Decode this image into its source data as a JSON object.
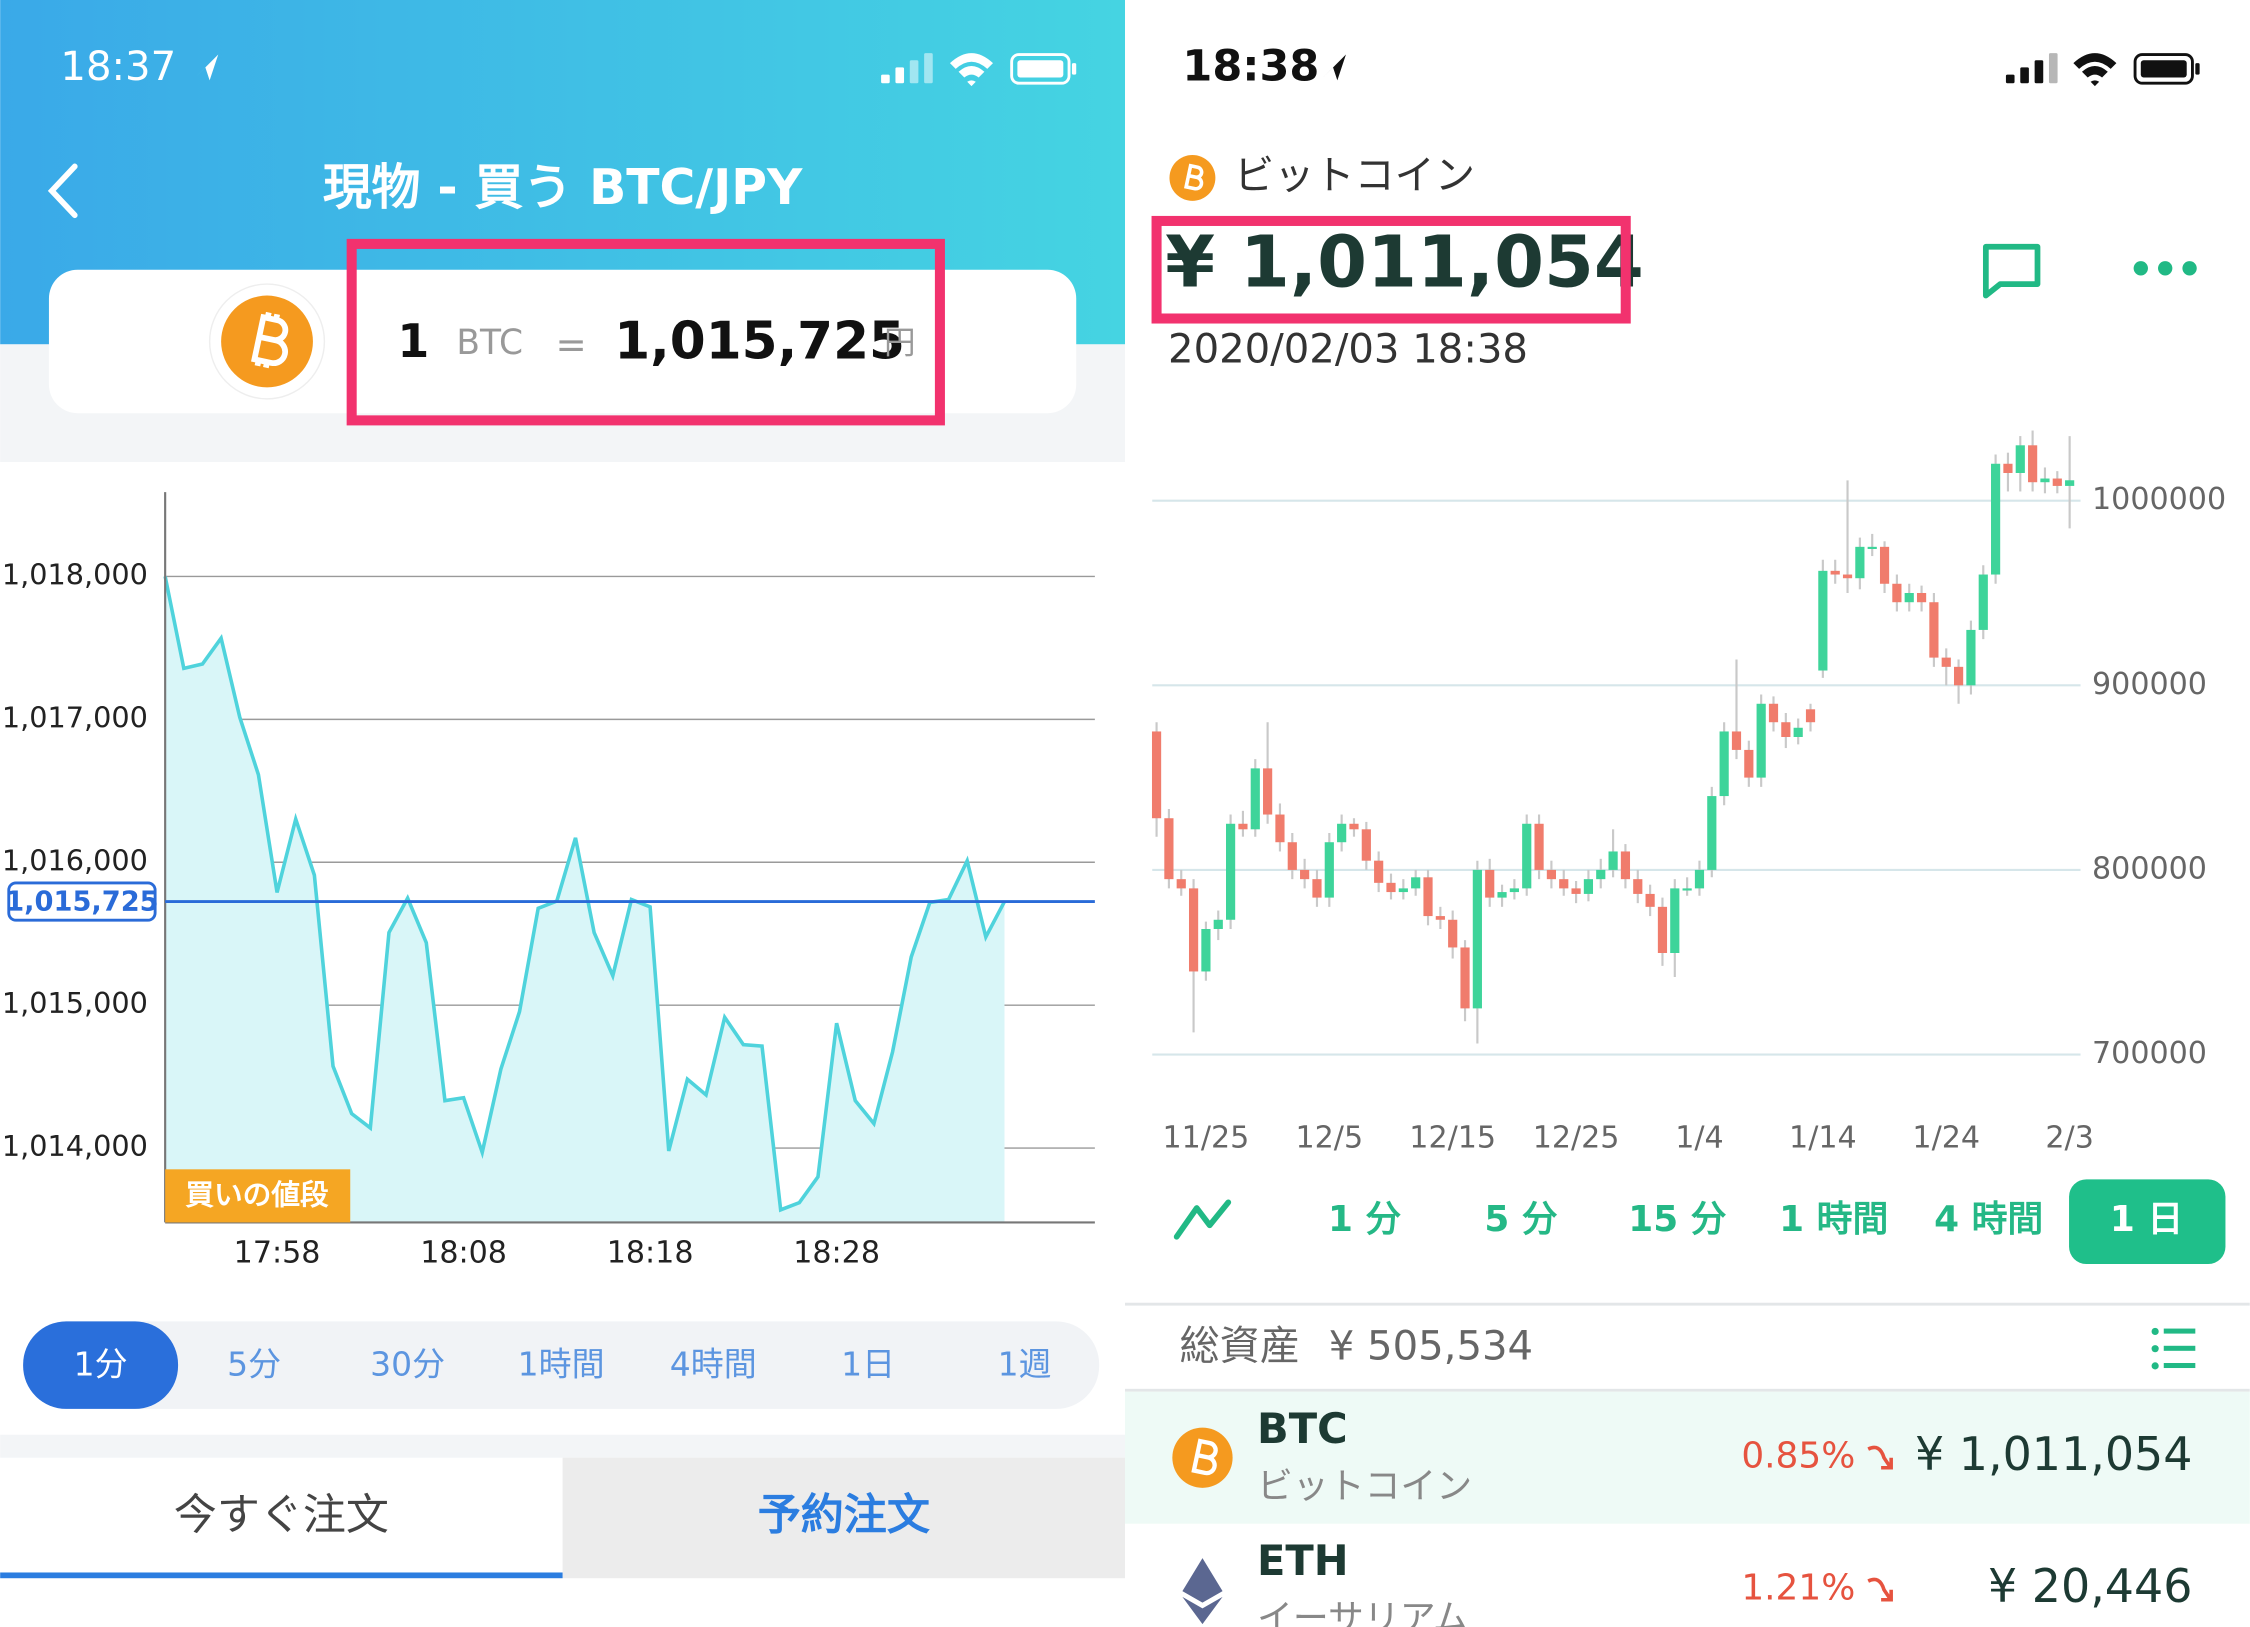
{
  "left": {
    "status_time": "18:37",
    "title": "現物 - 買う BTC/JPY",
    "rate": {
      "amount": "1",
      "unit": "BTC",
      "equals": "=",
      "price": "1,015,725",
      "currency": "円"
    },
    "chart": {
      "type": "line",
      "color": "#4fd3dc",
      "fill": "#d9f6f8",
      "categories": [
        null,
        null,
        null,
        null,
        null,
        null,
        "17:58",
        null,
        null,
        null,
        null,
        null,
        null,
        null,
        null,
        null,
        "18:08",
        null,
        null,
        null,
        null,
        null,
        null,
        null,
        null,
        null,
        "18:18",
        null,
        null,
        null,
        null,
        null,
        null,
        null,
        null,
        null,
        "18:28",
        null,
        null,
        null,
        null,
        null,
        null,
        null,
        null,
        null
      ],
      "values": [
        1018000,
        1017357,
        1017387,
        1017568,
        1017015,
        1016613,
        1015789,
        1016302,
        1015910,
        1014573,
        1014241,
        1014141,
        1015508,
        1015749,
        1015437,
        1014332,
        1014352,
        1013970,
        1014553,
        1014955,
        1015678,
        1015729,
        1016171,
        1015508,
        1015206,
        1015739,
        1015688,
        1013980,
        1014482,
        1014372,
        1014915,
        1014724,
        1014714,
        1013568,
        1013618,
        1013799,
        1014874,
        1014332,
        1014171,
        1014673,
        1015337,
        1015719,
        1015739,
        1016010,
        1015477,
        1015725
      ],
      "ylim": [
        1013480,
        1018590
      ],
      "yticks": [
        {
          "value": 1014000,
          "label": "1,014,000"
        },
        {
          "value": 1015000,
          "label": "1,015,000"
        },
        {
          "value": 1016000,
          "label": "1,016,000"
        },
        {
          "value": 1017000,
          "label": "1,017,000"
        },
        {
          "value": 1018000,
          "label": "1,018,000"
        }
      ],
      "grid": true,
      "current": {
        "value": 1015725,
        "label": "1,015,725"
      },
      "tag": "買いの値段"
    },
    "intervals": [
      "1分",
      "5分",
      "30分",
      "1時間",
      "4時間",
      "1日",
      "1週"
    ],
    "selected_interval": 0,
    "order_tabs": [
      "今すぐ注文",
      "予約注文"
    ]
  },
  "right": {
    "status_time": "18:38",
    "coin_name": "ビットコイン",
    "price": "¥ 1,011,054",
    "timestamp": "2020/02/03 18:38",
    "chart": {
      "type": "candlestick",
      "up_color": "#3ed49a",
      "down_color": "#f07c6c",
      "categories": [
        null,
        null,
        null,
        null,
        "11/25",
        null,
        null,
        null,
        null,
        null,
        null,
        null,
        null,
        null,
        "12/5",
        null,
        null,
        null,
        null,
        null,
        null,
        null,
        null,
        null,
        "12/15",
        null,
        null,
        null,
        null,
        null,
        null,
        null,
        null,
        null,
        "12/25",
        null,
        null,
        null,
        null,
        null,
        null,
        null,
        null,
        null,
        "1/4",
        null,
        null,
        null,
        null,
        null,
        null,
        null,
        null,
        null,
        "1/14",
        null,
        null,
        null,
        null,
        null,
        null,
        null,
        null,
        null,
        "1/24",
        null,
        null,
        null,
        null,
        null,
        null,
        null,
        null,
        null,
        "2/3"
      ],
      "candles": [
        [
          875000,
          880000,
          818000,
          828000
        ],
        [
          828000,
          833000,
          790000,
          795000
        ],
        [
          795000,
          800000,
          786000,
          790000
        ],
        [
          790000,
          795000,
          712000,
          745000
        ],
        [
          745000,
          772000,
          740000,
          768000
        ],
        [
          768000,
          778000,
          762000,
          773000
        ],
        [
          773000,
          830000,
          768000,
          825000
        ],
        [
          825000,
          832000,
          818000,
          822000
        ],
        [
          822000,
          860000,
          818000,
          855000
        ],
        [
          855000,
          880000,
          825000,
          830000
        ],
        [
          830000,
          836000,
          810000,
          815000
        ],
        [
          815000,
          820000,
          795000,
          800000
        ],
        [
          800000,
          806000,
          790000,
          795000
        ],
        [
          795000,
          800000,
          780000,
          785000
        ],
        [
          785000,
          820000,
          780000,
          815000
        ],
        [
          815000,
          830000,
          810000,
          825000
        ],
        [
          825000,
          828000,
          818000,
          822000
        ],
        [
          822000,
          826000,
          800000,
          805000
        ],
        [
          805000,
          810000,
          788000,
          793000
        ],
        [
          793000,
          798000,
          784000,
          788000
        ],
        [
          788000,
          795000,
          784000,
          790000
        ],
        [
          790000,
          800000,
          786000,
          796000
        ],
        [
          796000,
          800000,
          770000,
          775000
        ],
        [
          775000,
          780000,
          768000,
          773000
        ],
        [
          773000,
          778000,
          752000,
          758000
        ],
        [
          758000,
          762000,
          718000,
          725000
        ],
        [
          725000,
          805000,
          706000,
          800000
        ],
        [
          800000,
          806000,
          780000,
          785000
        ],
        [
          785000,
          792000,
          780000,
          788000
        ],
        [
          788000,
          795000,
          784000,
          790000
        ],
        [
          790000,
          830000,
          786000,
          825000
        ],
        [
          825000,
          830000,
          795000,
          800000
        ],
        [
          800000,
          805000,
          790000,
          795000
        ],
        [
          795000,
          800000,
          786000,
          790000
        ],
        [
          790000,
          794000,
          782000,
          787000
        ],
        [
          787000,
          800000,
          783000,
          795000
        ],
        [
          795000,
          806000,
          790000,
          800000
        ],
        [
          800000,
          822000,
          796000,
          810000
        ],
        [
          810000,
          814000,
          790000,
          795000
        ],
        [
          795000,
          800000,
          782000,
          787000
        ],
        [
          787000,
          792000,
          775000,
          780000
        ],
        [
          780000,
          785000,
          748000,
          755000
        ],
        [
          755000,
          795000,
          742000,
          790000
        ],
        [
          790000,
          796000,
          786000,
          790000
        ],
        [
          790000,
          805000,
          786000,
          800000
        ],
        [
          800000,
          845000,
          796000,
          840000
        ],
        [
          840000,
          880000,
          835000,
          875000
        ],
        [
          875000,
          914000,
          860000,
          865000
        ],
        [
          865000,
          870000,
          845000,
          850000
        ],
        [
          850000,
          895000,
          845000,
          890000
        ],
        [
          890000,
          894000,
          875000,
          880000
        ],
        [
          880000,
          885000,
          866000,
          872000
        ],
        [
          872000,
          882000,
          868000,
          877000
        ],
        [
          887000,
          890000,
          875000,
          880000
        ],
        [
          908000,
          968000,
          904000,
          962000
        ],
        [
          962000,
          968000,
          955000,
          960000
        ],
        [
          960000,
          1011000,
          950000,
          958000
        ],
        [
          958000,
          980000,
          952000,
          975000
        ],
        [
          975000,
          982000,
          970000,
          975000
        ],
        [
          975000,
          978000,
          950000,
          955000
        ],
        [
          955000,
          960000,
          940000,
          945000
        ],
        [
          945000,
          955000,
          940000,
          950000
        ],
        [
          950000,
          954000,
          940000,
          945000
        ],
        [
          945000,
          950000,
          910000,
          915000
        ],
        [
          915000,
          920000,
          900000,
          910000
        ],
        [
          910000,
          914000,
          890000,
          900000
        ],
        [
          900000,
          935000,
          895000,
          930000
        ],
        [
          930000,
          965000,
          925000,
          960000
        ],
        [
          960000,
          1025000,
          955000,
          1020000
        ],
        [
          1020000,
          1026000,
          1005000,
          1015000
        ],
        [
          1015000,
          1035000,
          1005000,
          1030000
        ],
        [
          1030000,
          1038000,
          1005000,
          1010000
        ],
        [
          1010000,
          1018000,
          1004000,
          1012000
        ],
        [
          1012000,
          1016000,
          1004000,
          1008000
        ],
        [
          1008000,
          1035000,
          985000,
          1011054
        ]
      ],
      "ylim": [
        700000,
        1040000
      ],
      "yticks": [
        700000,
        800000,
        900000,
        1000000
      ],
      "grid": true
    },
    "intervals": [
      "1 分",
      "5 分",
      "15 分",
      "1 時間",
      "4 時間",
      "1 日"
    ],
    "selected_interval": 5,
    "total_label": "総資産",
    "total_value": "¥ 505,534",
    "assets": [
      {
        "symbol": "BTC",
        "name": "ビットコイン",
        "change": "0.85%",
        "price": "¥ 1,011,054"
      },
      {
        "symbol": "ETH",
        "name": "イーサリアム",
        "change": "1.21%",
        "price": "¥ 20,446"
      }
    ]
  }
}
